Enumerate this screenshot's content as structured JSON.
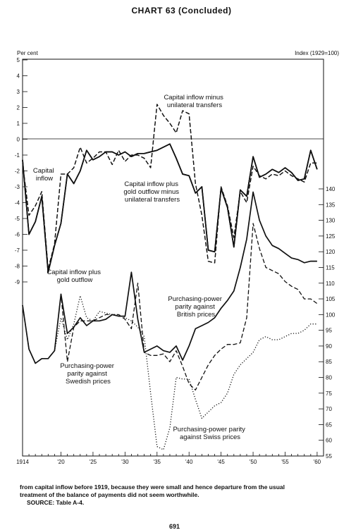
{
  "page": {
    "title": "CHART 63  (Concluded)",
    "footnote_line1": "from capital inflow before 1919, because they were small and hence departure from the usual",
    "footnote_line2": "treatment of the balance of payments did not seem worthwhile.",
    "source": "SOURCE: Table A-4.",
    "page_number": "691"
  },
  "chart_data": {
    "type": "line",
    "xlabel": "",
    "xlim": [
      1914,
      1961
    ],
    "x_ticks": [
      1914,
      1920,
      1925,
      1930,
      1935,
      1940,
      1945,
      1950,
      1955,
      1960
    ],
    "x_tick_labels": [
      "1914",
      "'20",
      "'25",
      "'30",
      "'35",
      "'40",
      "'45",
      "'50",
      "'55",
      "'60"
    ],
    "left_axis": {
      "label": "Per cent",
      "ylim": [
        -9,
        5
      ],
      "ticks": [
        5,
        4,
        3,
        2,
        1,
        0,
        -1,
        -2,
        -3,
        -4,
        -5,
        -6,
        -7,
        -8,
        -9
      ],
      "tick_labels": [
        "5",
        "4",
        "3",
        "2",
        "1",
        "0",
        "-1",
        "-2",
        "-3",
        "-4",
        "-5",
        "-6",
        "-7",
        "-8",
        "-9"
      ]
    },
    "right_axis": {
      "label": "Index (1929=100)",
      "ylim": [
        55,
        140
      ],
      "ticks": [
        140,
        135,
        130,
        125,
        120,
        115,
        110,
        105,
        100,
        95,
        90,
        85,
        80,
        75,
        70,
        65,
        60,
        55
      ],
      "tick_labels": [
        "140",
        "135",
        "130",
        "125",
        "120",
        "115",
        "110",
        "105",
        "100",
        "95",
        "90",
        "85",
        "80",
        "75",
        "70",
        "65",
        "60",
        "55"
      ]
    },
    "series": [
      {
        "name": "Capital inflow minus unilateral transfers",
        "axis": "left",
        "style": "dashed",
        "x": [
          1914,
          1915,
          1916,
          1917,
          1918,
          1919,
          1920,
          1921,
          1922,
          1923,
          1924,
          1925,
          1926,
          1927,
          1928,
          1929,
          1930,
          1931,
          1932,
          1933,
          1934,
          1935,
          1936,
          1937,
          1938,
          1939,
          1940,
          1941,
          1942,
          1943,
          1944,
          1945,
          1946,
          1947,
          1948,
          1949,
          1950,
          1951,
          1952,
          1953,
          1954,
          1955,
          1956,
          1957,
          1958,
          1959,
          1960
        ],
        "values": [
          -1.5,
          -4.8,
          -4.2,
          -3.3,
          -8.2,
          -6.6,
          -2.2,
          -2.2,
          -1.8,
          -0.5,
          -1.5,
          -1.2,
          -0.8,
          -0.8,
          -1.6,
          -0.7,
          -1.4,
          -1.0,
          -1.0,
          -1.2,
          -1.8,
          2.2,
          1.5,
          1.0,
          0.4,
          1.8,
          1.6,
          -2.8,
          -4.8,
          -7.7,
          -7.8,
          -3.0,
          -4.2,
          -6.2,
          -3.3,
          -4.0,
          -1.7,
          -2.3,
          -2.5,
          -2.2,
          -2.3,
          -2.0,
          -2.3,
          -2.5,
          -2.7,
          -1.5,
          -1.5
        ]
      },
      {
        "name": "Capital inflow plus gold outflow minus unilateral transfers",
        "axis": "left",
        "style": "solid",
        "x": [
          1914,
          1915,
          1916,
          1917,
          1918,
          1919,
          1920,
          1921,
          1922,
          1923,
          1924,
          1925,
          1926,
          1927,
          1928,
          1929,
          1930,
          1931,
          1932,
          1933,
          1934,
          1935,
          1936,
          1937,
          1938,
          1939,
          1940,
          1941,
          1942,
          1943,
          1944,
          1945,
          1946,
          1947,
          1948,
          1949,
          1950,
          1951,
          1952,
          1953,
          1954,
          1955,
          1956,
          1957,
          1958,
          1959,
          1960
        ],
        "values": [
          -1.3,
          -6.0,
          -5.2,
          -3.6,
          -8.4,
          -6.7,
          -5.3,
          -2.2,
          -2.8,
          -2.0,
          -0.7,
          -1.3,
          -1.1,
          -0.8,
          -0.8,
          -1.0,
          -0.8,
          -1.1,
          -0.9,
          -0.9,
          -0.8,
          -0.7,
          -0.5,
          -0.3,
          -1.2,
          -2.2,
          -2.3,
          -3.4,
          -3.0,
          -7.0,
          -7.1,
          -3.1,
          -4.3,
          -6.8,
          -3.2,
          -3.6,
          -1.1,
          -2.4,
          -2.2,
          -1.9,
          -2.1,
          -1.8,
          -2.1,
          -2.6,
          -2.5,
          -0.7,
          -1.9
        ]
      },
      {
        "name": "Capital inflow",
        "axis": "left",
        "style": "dashed",
        "x": [
          1914,
          1915,
          1916,
          1917,
          1918,
          1919,
          1920,
          1921,
          1922,
          1923,
          1924,
          1925,
          1926,
          1927,
          1928,
          1929,
          1930,
          1931,
          1932,
          1933,
          1934,
          1935,
          1936,
          1937,
          1938,
          1939,
          1940,
          1941,
          1942,
          1943,
          1944,
          1945,
          1946,
          1947,
          1948,
          1949,
          1950,
          1951,
          1952,
          1953,
          1954,
          1955,
          1956,
          1957,
          1958,
          1959,
          1960
        ],
        "values": [
          -1.5,
          -4.8,
          -4.2,
          -3.3,
          -8.2,
          -6.6,
          -2.2,
          -2.2,
          -1.8,
          -0.5,
          -1.5,
          -1.2,
          -0.8,
          -0.8,
          -1.6,
          -0.7,
          -1.4,
          -1.0,
          -1.0,
          -1.2,
          -1.8,
          2.2,
          1.5,
          1.0,
          0.4,
          1.8,
          1.6,
          -2.8,
          -4.8,
          -7.7,
          -7.8,
          -3.0,
          -4.2,
          -6.2,
          -3.3,
          -4.0,
          -1.7,
          -2.3,
          -2.5,
          -2.2,
          -2.3,
          -2.0,
          -2.3,
          -2.5,
          -2.7,
          -1.5,
          -1.5
        ]
      },
      {
        "name": "Capital inflow plus gold outflow",
        "axis": "left",
        "style": "solid",
        "x": [
          1914,
          1915,
          1916,
          1917,
          1918,
          1919,
          1920,
          1921,
          1922,
          1923,
          1924,
          1925,
          1926,
          1927,
          1928,
          1929,
          1930,
          1931,
          1932,
          1933,
          1934,
          1935,
          1936,
          1937,
          1938,
          1939,
          1940,
          1941,
          1942,
          1943,
          1944,
          1945,
          1946,
          1947,
          1948,
          1949,
          1950,
          1951,
          1952,
          1953,
          1954,
          1955,
          1956,
          1957,
          1958,
          1959,
          1960
        ],
        "values": [
          -1.3,
          -6.0,
          -5.2,
          -3.6,
          -8.4,
          -6.7,
          -5.3,
          -2.2,
          -2.8,
          -2.0,
          -0.7,
          -1.3,
          -1.1,
          -0.8,
          -0.8,
          -1.0,
          -0.8,
          -1.1,
          -0.9,
          -0.9,
          -0.8,
          -0.7,
          -0.5,
          -0.3,
          -1.2,
          -2.2,
          -2.3,
          -3.4,
          -3.0,
          -7.0,
          -7.1,
          -3.1,
          -4.3,
          -6.8,
          -3.2,
          -3.6,
          -1.1,
          -2.4,
          -2.2,
          -1.9,
          -2.1,
          -1.8,
          -2.1,
          -2.6,
          -2.5,
          -0.7,
          -1.9
        ]
      },
      {
        "name": "Purchasing-power parity against British prices",
        "axis": "right",
        "style": "solid",
        "x": [
          1914,
          1915,
          1916,
          1917,
          1918,
          1919,
          1920,
          1921,
          1922,
          1923,
          1924,
          1925,
          1926,
          1927,
          1928,
          1929,
          1930,
          1931,
          1932,
          1933,
          1934,
          1935,
          1936,
          1937,
          1938,
          1939,
          1940,
          1941,
          1942,
          1943,
          1944,
          1945,
          1946,
          1947,
          1948,
          1949,
          1950,
          1951,
          1952,
          1953,
          1954,
          1955,
          1956,
          1957,
          1958,
          1959,
          1960
        ],
        "values": [
          103,
          89,
          84.5,
          86,
          86,
          88.5,
          106.5,
          94,
          96,
          99,
          96.5,
          98,
          98,
          98.5,
          100,
          99.5,
          99.5,
          113.5,
          98.5,
          88,
          89,
          90,
          88.5,
          88,
          90,
          85.5,
          90,
          95.5,
          96.5,
          97.5,
          99,
          102,
          104.5,
          107.5,
          115,
          124,
          139,
          130,
          125,
          122,
          121,
          119.5,
          118,
          117.5,
          116.5,
          117,
          117
        ]
      },
      {
        "name": "Purchasing-power parity against Swedish prices",
        "axis": "right",
        "style": "dashed",
        "x": [
          1914,
          1915,
          1916,
          1917,
          1918,
          1919,
          1920,
          1921,
          1922,
          1923,
          1924,
          1925,
          1926,
          1927,
          1928,
          1929,
          1930,
          1931,
          1932,
          1933,
          1934,
          1935,
          1936,
          1937,
          1938,
          1939,
          1940,
          1941,
          1942,
          1943,
          1944,
          1945,
          1946,
          1947,
          1948,
          1949,
          1950,
          1951,
          1952,
          1953,
          1954,
          1955,
          1956,
          1957,
          1958,
          1959,
          1960
        ],
        "values": [
          103,
          89,
          84.5,
          86,
          86,
          88.5,
          106.5,
          85,
          96,
          98,
          98,
          98,
          99,
          100,
          100,
          100,
          98.5,
          95.5,
          110,
          88,
          87,
          87,
          87.5,
          85,
          88.5,
          83.5,
          78,
          76,
          80,
          84,
          87,
          89,
          90.5,
          90.5,
          91,
          99,
          129,
          121,
          115,
          114,
          113,
          110.5,
          109,
          108,
          105,
          105,
          103.5
        ]
      },
      {
        "name": "Purchasing-power parity against Swiss prices",
        "axis": "right",
        "style": "dotted",
        "x": [
          1914,
          1915,
          1916,
          1917,
          1918,
          1919,
          1920,
          1921,
          1922,
          1923,
          1924,
          1925,
          1926,
          1927,
          1928,
          1929,
          1930,
          1931,
          1932,
          1933,
          1934,
          1935,
          1936,
          1937,
          1938,
          1939,
          1940,
          1941,
          1942,
          1943,
          1944,
          1945,
          1946,
          1947,
          1948,
          1949,
          1950,
          1951,
          1952,
          1953,
          1954,
          1955,
          1956,
          1957,
          1958,
          1959,
          1960
        ],
        "values": [
          103,
          89,
          84.5,
          86,
          86,
          88.5,
          99,
          92,
          97,
          106,
          99,
          98,
          101,
          100.5,
          100,
          100,
          99,
          98,
          96,
          93,
          75,
          58,
          57,
          64,
          80,
          79.5,
          79.5,
          73,
          67,
          69,
          71,
          72,
          75,
          81,
          84,
          86,
          88,
          92,
          93,
          92,
          92,
          93,
          94,
          94,
          95,
          97,
          97
        ]
      }
    ],
    "annotations": [
      [
        "Capital inflow minus",
        "unilateral transfers"
      ],
      [
        "Capital",
        "inflow"
      ],
      [
        "Capital inflow plus",
        "gold outflow minus",
        "unilateral transfers"
      ],
      [
        "Capital inflow plus",
        "gold outflow"
      ],
      [
        "Purchasing-power",
        "parity against",
        "British prices"
      ],
      [
        "Purchasing-power",
        "parity against",
        "Swedish prices"
      ],
      [
        "Purchasing-power parity",
        "against Swiss prices"
      ]
    ]
  }
}
